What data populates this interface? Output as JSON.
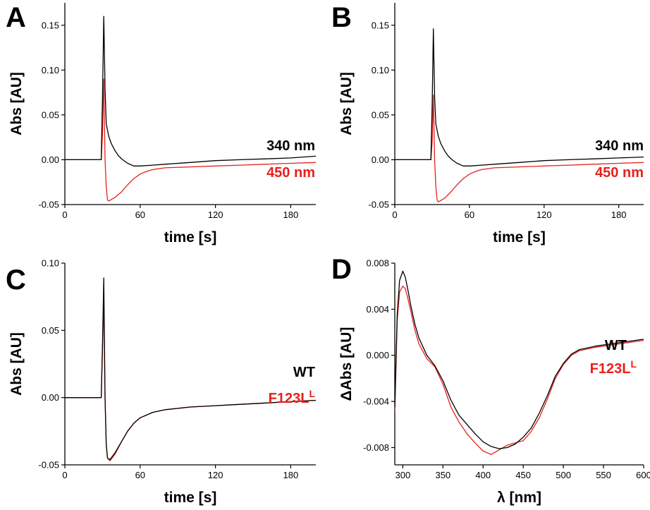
{
  "chart_data": [
    {
      "panel": "A",
      "type": "line",
      "xlabel": "time [s]",
      "ylabel": "Abs [AU]",
      "xlim": [
        0,
        200
      ],
      "ylim": [
        -0.05,
        0.175
      ],
      "xticks": [
        "0",
        "60",
        "120",
        "180"
      ],
      "yticks": [
        "-0.05",
        "0.00",
        "0.05",
        "0.10",
        "0.15"
      ],
      "series": [
        {
          "name": "340 nm",
          "color": "#000000",
          "x": [
            0,
            10,
            20,
            29,
            30,
            31,
            32,
            33,
            35,
            37,
            40,
            43,
            46,
            50,
            55,
            60,
            70,
            80,
            100,
            120,
            140,
            160,
            180,
            200
          ],
          "y": [
            0.0,
            0.0,
            0.0,
            0.0,
            0.07,
            0.16,
            0.08,
            0.04,
            0.026,
            0.018,
            0.01,
            0.004,
            0.0,
            -0.004,
            -0.007,
            -0.007,
            -0.006,
            -0.005,
            -0.003,
            -0.001,
            0.0,
            0.001,
            0.002,
            0.004
          ]
        },
        {
          "name": "450 nm",
          "color": "#e8201a",
          "x": [
            0,
            10,
            20,
            29,
            30,
            31,
            32,
            33,
            34,
            35,
            40,
            45,
            50,
            55,
            60,
            65,
            70,
            80,
            100,
            120,
            140,
            160,
            180,
            200
          ],
          "y": [
            0.0,
            0.0,
            0.0,
            0.0,
            0.03,
            0.09,
            0.0,
            -0.03,
            -0.045,
            -0.046,
            -0.042,
            -0.036,
            -0.028,
            -0.021,
            -0.016,
            -0.013,
            -0.011,
            -0.009,
            -0.008,
            -0.007,
            -0.006,
            -0.005,
            -0.004,
            -0.003
          ]
        }
      ]
    },
    {
      "panel": "B",
      "type": "line",
      "xlabel": "time [s]",
      "ylabel": "Abs [AU]",
      "xlim": [
        0,
        200
      ],
      "ylim": [
        -0.05,
        0.175
      ],
      "xticks": [
        "0",
        "60",
        "120",
        "180"
      ],
      "yticks": [
        "-0.05",
        "0.00",
        "0.05",
        "0.10",
        "0.15"
      ],
      "series": [
        {
          "name": "340 nm",
          "color": "#000000",
          "x": [
            0,
            10,
            20,
            29,
            30,
            31,
            32,
            33,
            35,
            37,
            40,
            43,
            46,
            50,
            55,
            60,
            70,
            80,
            100,
            120,
            140,
            160,
            180,
            200
          ],
          "y": [
            0.0,
            0.0,
            0.0,
            0.0,
            0.06,
            0.146,
            0.07,
            0.04,
            0.026,
            0.018,
            0.01,
            0.004,
            0.0,
            -0.004,
            -0.007,
            -0.007,
            -0.006,
            -0.005,
            -0.003,
            -0.001,
            0.0,
            0.001,
            0.002,
            0.003
          ]
        },
        {
          "name": "450 nm",
          "color": "#e8201a",
          "x": [
            0,
            10,
            20,
            29,
            30,
            31,
            32,
            33,
            34,
            35,
            40,
            45,
            50,
            55,
            60,
            65,
            70,
            80,
            100,
            120,
            140,
            160,
            180,
            200
          ],
          "y": [
            0.0,
            0.0,
            0.0,
            0.0,
            0.02,
            0.072,
            0.0,
            -0.03,
            -0.045,
            -0.047,
            -0.043,
            -0.036,
            -0.028,
            -0.021,
            -0.016,
            -0.013,
            -0.011,
            -0.009,
            -0.008,
            -0.007,
            -0.006,
            -0.005,
            -0.004,
            -0.003
          ]
        }
      ]
    },
    {
      "panel": "C",
      "type": "line",
      "xlabel": "time [s]",
      "ylabel": "Abs [AU]",
      "xlim": [
        0,
        200
      ],
      "ylim": [
        -0.05,
        0.1
      ],
      "xticks": [
        "0",
        "60",
        "120",
        "180"
      ],
      "yticks": [
        "-0.05",
        "0.00",
        "0.05",
        "0.10"
      ],
      "series": [
        {
          "name": "WT",
          "color": "#000000",
          "x": [
            0,
            10,
            20,
            29,
            30,
            31,
            32,
            33,
            34,
            36,
            40,
            45,
            50,
            55,
            60,
            70,
            80,
            100,
            120,
            140,
            160,
            180,
            200
          ],
          "y": [
            0.0,
            0.0,
            0.0,
            0.0,
            0.04,
            0.089,
            0.0,
            -0.035,
            -0.045,
            -0.046,
            -0.041,
            -0.033,
            -0.025,
            -0.019,
            -0.015,
            -0.011,
            -0.009,
            -0.007,
            -0.006,
            -0.005,
            -0.004,
            -0.003,
            -0.002
          ]
        },
        {
          "name": "F123L",
          "sup": "L",
          "color": "#e8201a",
          "x": [
            0,
            10,
            20,
            29,
            30,
            31,
            32,
            33,
            34,
            36,
            40,
            45,
            50,
            55,
            60,
            70,
            80,
            100,
            120,
            140,
            160,
            180,
            200
          ],
          "y": [
            0.0,
            0.0,
            0.0,
            0.0,
            0.035,
            0.073,
            0.0,
            -0.035,
            -0.045,
            -0.047,
            -0.042,
            -0.033,
            -0.025,
            -0.019,
            -0.015,
            -0.011,
            -0.009,
            -0.007,
            -0.006,
            -0.005,
            -0.004,
            -0.003,
            -0.002
          ]
        }
      ]
    },
    {
      "panel": "D",
      "type": "line",
      "xlabel": "λ [nm]",
      "ylabel": "ΔAbs [AU]",
      "xlim": [
        290,
        600
      ],
      "ylim": [
        -0.0095,
        0.008
      ],
      "xticks": [
        "300",
        "350",
        "400",
        "450",
        "500",
        "550",
        "600"
      ],
      "yticks": [
        "-0.008",
        "-0.004",
        "0.000",
        "0.004",
        "0.008"
      ],
      "series": [
        {
          "name": "WT",
          "color": "#000000",
          "x": [
            290,
            293,
            296,
            300,
            303,
            306,
            310,
            315,
            320,
            330,
            340,
            350,
            360,
            370,
            380,
            390,
            400,
            410,
            420,
            430,
            440,
            450,
            460,
            470,
            480,
            490,
            500,
            510,
            520,
            540,
            560,
            580,
            600
          ],
          "y": [
            -0.0045,
            0.0035,
            0.0065,
            0.0073,
            0.0068,
            0.0058,
            0.0043,
            0.0027,
            0.0015,
            0.0,
            -0.0009,
            -0.0022,
            -0.0039,
            -0.0052,
            -0.006,
            -0.0068,
            -0.0075,
            -0.0079,
            -0.0081,
            -0.008,
            -0.0077,
            -0.0071,
            -0.0063,
            -0.005,
            -0.0035,
            -0.0018,
            -0.0007,
            0.0001,
            0.0005,
            0.0008,
            0.001,
            0.0012,
            0.0014
          ]
        },
        {
          "name": "F123L",
          "sup": "L",
          "color": "#e8201a",
          "x": [
            290,
            293,
            296,
            300,
            303,
            306,
            310,
            315,
            320,
            330,
            340,
            350,
            360,
            370,
            380,
            390,
            400,
            410,
            420,
            430,
            440,
            450,
            460,
            470,
            480,
            490,
            500,
            510,
            520,
            540,
            560,
            580,
            600
          ],
          "y": [
            -0.005,
            0.003,
            0.0055,
            0.006,
            0.0058,
            0.005,
            0.0038,
            0.0022,
            0.001,
            -0.0003,
            -0.001,
            -0.0025,
            -0.0045,
            -0.0058,
            -0.0068,
            -0.0076,
            -0.0083,
            -0.0086,
            -0.0082,
            -0.0078,
            -0.0076,
            -0.0074,
            -0.0066,
            -0.0054,
            -0.0038,
            -0.002,
            -0.0008,
            0.0,
            0.0004,
            0.0007,
            0.0009,
            0.0011,
            0.0013
          ]
        }
      ]
    }
  ]
}
